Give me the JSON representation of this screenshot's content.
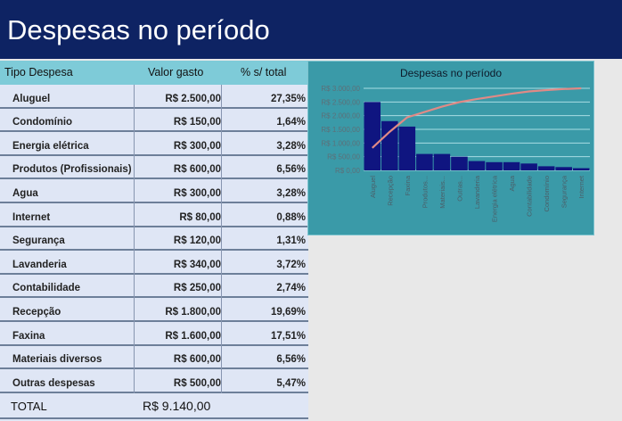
{
  "header": {
    "title": "Despesas no período"
  },
  "table": {
    "columns": [
      "Tipo Despesa",
      "Valor gasto",
      "% s/ total"
    ],
    "rows": [
      [
        "Aluguel",
        "R$ 2.500,00",
        "27,35%"
      ],
      [
        "Condomínio",
        "R$ 150,00",
        "1,64%"
      ],
      [
        "Energia elétrica",
        "R$ 300,00",
        "3,28%"
      ],
      [
        "Produtos (Profissionais)",
        "R$ 600,00",
        "6,56%"
      ],
      [
        "Agua",
        "R$ 300,00",
        "3,28%"
      ],
      [
        "Internet",
        "R$ 80,00",
        "0,88%"
      ],
      [
        "Segurança",
        "R$ 120,00",
        "1,31%"
      ],
      [
        "Lavanderia",
        "R$ 340,00",
        "3,72%"
      ],
      [
        "Contabilidade",
        "R$ 250,00",
        "2,74%"
      ],
      [
        "Recepção",
        "R$ 1.800,00",
        "19,69%"
      ],
      [
        "Faxina",
        "R$ 1.600,00",
        "17,51%"
      ],
      [
        "Materiais diversos",
        "R$ 600,00",
        "6,56%"
      ],
      [
        "Outras despesas",
        "R$ 500,00",
        "5,47%"
      ]
    ],
    "total_label": "TOTAL",
    "total_value": "R$ 9.140,00"
  },
  "chart_data": {
    "type": "bar",
    "title": "Despesas no período",
    "categories": [
      "Aluguel",
      "Recepção",
      "Faxina",
      "Produtos...",
      "Materiais...",
      "Outras...",
      "Lavanderia",
      "Energia elétrica",
      "Agua",
      "Contabilidade",
      "Condomínio",
      "Segurança",
      "Internet"
    ],
    "values": [
      2500,
      1800,
      1600,
      600,
      600,
      500,
      340,
      300,
      300,
      250,
      150,
      120,
      80
    ],
    "cumulative_percent": [
      27.35,
      47.04,
      64.55,
      71.11,
      77.67,
      83.14,
      86.86,
      90.15,
      93.43,
      96.17,
      97.81,
      99.12,
      100
    ],
    "ylim": [
      0,
      3000
    ],
    "yticks": [
      "R$ 0,00",
      "R$ 500,00",
      "R$ 1.000,00",
      "R$ 1.500,00",
      "R$ 2.000,00",
      "R$ 2.500,00",
      "R$ 3.000,00"
    ],
    "grid": true,
    "colors": {
      "bar": "#0f1580",
      "line": "#e08a86",
      "background": "#3a9aa8",
      "grid": "#a8dde4"
    }
  }
}
